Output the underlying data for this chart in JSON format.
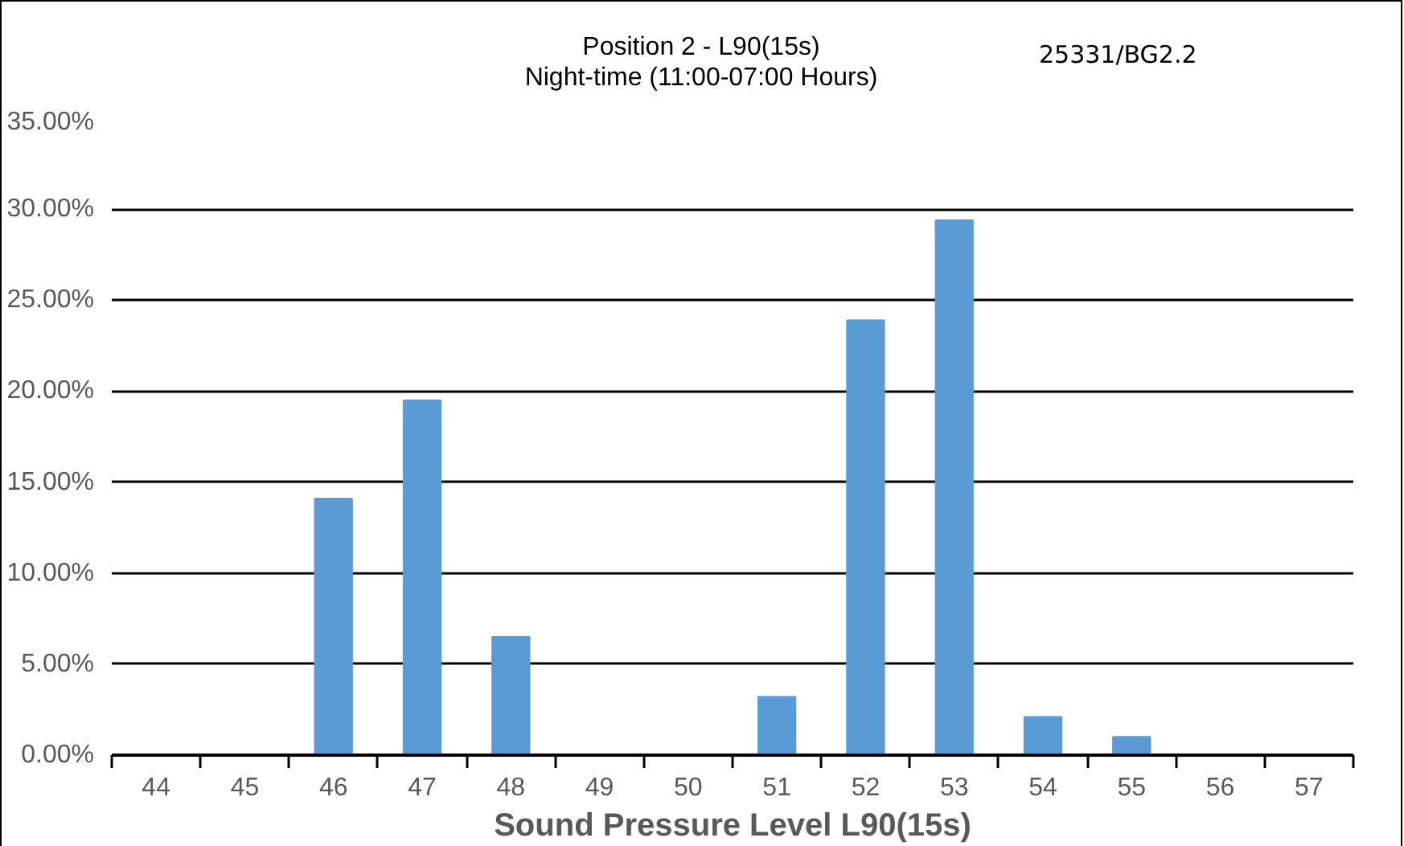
{
  "chart_data": {
    "type": "bar",
    "title": "Position 2 - L90(15s)",
    "subtitle": "Night-time (11:00-07:00 Hours)",
    "xlabel": "Sound Pressure Level L90(15s)",
    "annotations": [
      "25331/BG2.2"
    ],
    "categories": [
      "44",
      "45",
      "46",
      "47",
      "48",
      "49",
      "50",
      "51",
      "52",
      "53",
      "54",
      "55",
      "56",
      "57"
    ],
    "values": [
      0,
      0,
      14.1,
      19.5,
      6.5,
      0,
      0,
      3.2,
      23.9,
      29.4,
      2.1,
      1.0,
      0,
      0
    ],
    "color": "#5b9bd5",
    "ylim": [
      0,
      35
    ],
    "yticks": [
      {
        "value": 0,
        "label": "0.00%"
      },
      {
        "value": 5,
        "label": "5.00%"
      },
      {
        "value": 10,
        "label": "10.00%"
      },
      {
        "value": 15,
        "label": "15.00%"
      },
      {
        "value": 20,
        "label": "20.00%"
      },
      {
        "value": 25,
        "label": "25.00%"
      },
      {
        "value": 30,
        "label": "30.00%"
      },
      {
        "value": 35,
        "label": "35.00%"
      }
    ],
    "grid": "y"
  }
}
